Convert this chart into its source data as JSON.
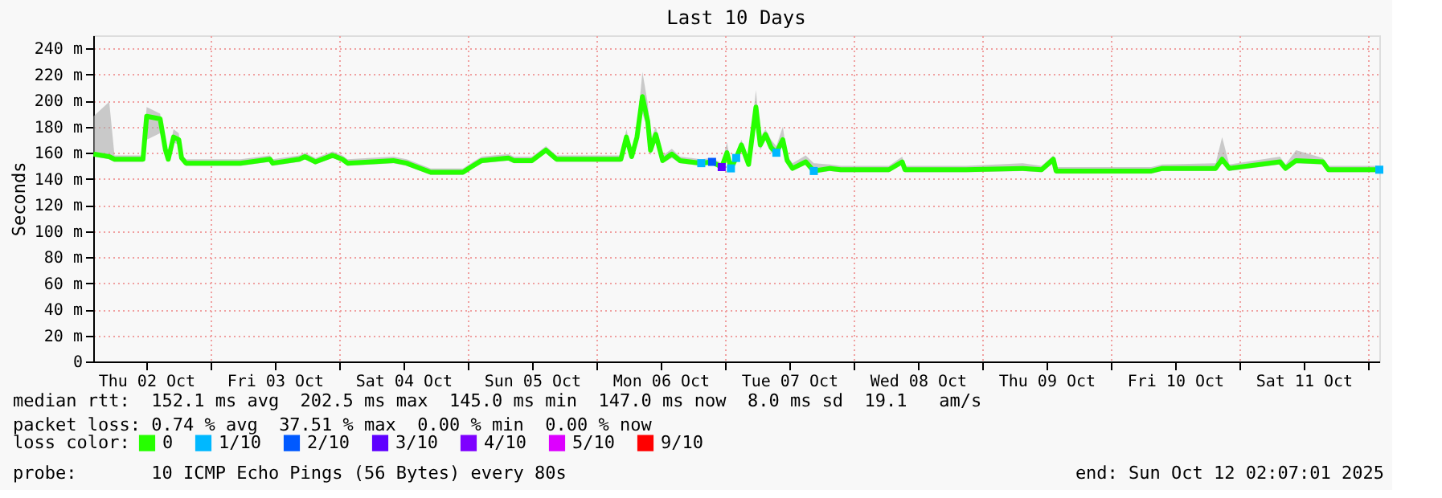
{
  "chart_data": {
    "type": "line",
    "title": "Last 10 Days",
    "ylabel": "Seconds",
    "legend_title": "loss color:",
    "legend": "bottom",
    "grid": true,
    "marker": "none",
    "line_style": "solid",
    "xlim": [
      "2025-10-02T02:07",
      "2025-10-12T02:07"
    ],
    "xticks": [
      {
        "value": "2025-10-02T12:00",
        "label": "Thu 02 Oct"
      },
      {
        "value": "2025-10-03T00:00",
        "label": null
      },
      {
        "value": "2025-10-03T12:00",
        "label": "Fri 03 Oct"
      },
      {
        "value": "2025-10-04T00:00",
        "label": null
      },
      {
        "value": "2025-10-04T12:00",
        "label": "Sat 04 Oct"
      },
      {
        "value": "2025-10-05T00:00",
        "label": null
      },
      {
        "value": "2025-10-05T12:00",
        "label": "Sun 05 Oct"
      },
      {
        "value": "2025-10-06T00:00",
        "label": null
      },
      {
        "value": "2025-10-06T12:00",
        "label": "Mon 06 Oct"
      },
      {
        "value": "2025-10-07T00:00",
        "label": null
      },
      {
        "value": "2025-10-07T12:00",
        "label": "Tue 07 Oct"
      },
      {
        "value": "2025-10-08T00:00",
        "label": null
      },
      {
        "value": "2025-10-08T12:00",
        "label": "Wed 08 Oct"
      },
      {
        "value": "2025-10-09T00:00",
        "label": null
      },
      {
        "value": "2025-10-09T12:00",
        "label": "Thu 09 Oct"
      },
      {
        "value": "2025-10-10T00:00",
        "label": null
      },
      {
        "value": "2025-10-10T12:00",
        "label": "Fri 10 Oct"
      },
      {
        "value": "2025-10-11T00:00",
        "label": null
      },
      {
        "value": "2025-10-11T12:00",
        "label": "Sat 11 Oct"
      },
      {
        "value": "2025-10-12T00:00",
        "label": null
      }
    ],
    "ylim": [
      0,
      250
    ],
    "yticks": [
      0,
      {
        "value": 20,
        "label": "20 m"
      },
      {
        "value": 40,
        "label": "40 m"
      },
      {
        "value": 60,
        "label": "60 m"
      },
      {
        "value": 80,
        "label": "80 m"
      },
      {
        "value": 100,
        "label": "100 m"
      },
      {
        "value": 120,
        "label": "120 m"
      },
      {
        "value": 140,
        "label": "140 m"
      },
      {
        "value": 160,
        "label": "160 m"
      },
      {
        "value": 180,
        "label": "180 m"
      },
      {
        "value": 200,
        "label": "200 m"
      },
      {
        "value": 220,
        "label": "220 m"
      },
      {
        "value": 240,
        "label": "240 m"
      }
    ],
    "series": [
      {
        "name": "0",
        "color": "#26ff00",
        "type": "line",
        "x": [
          "2025-10-02T02:10",
          "2025-10-02T05:06",
          "2025-10-02T06:05",
          "2025-10-02T11:24",
          "2025-10-02T12:05",
          "2025-10-02T14:36",
          "2025-10-02T15:36",
          "2025-10-02T16:07",
          "2025-10-02T17:06",
          "2025-10-02T18:05",
          "2025-10-02T18:36",
          "2025-10-02T19:25",
          "2025-10-03T05:36",
          "2025-10-03T11:06",
          "2025-10-03T11:37",
          "2025-10-03T16:35",
          "2025-10-03T17:37",
          "2025-10-03T19:35",
          "2025-10-03T22:48",
          "2025-10-04T00:36",
          "2025-10-04T01:35",
          "2025-10-04T10:07",
          "2025-10-04T12:36",
          "2025-10-04T17:06",
          "2025-10-04T23:06",
          "2025-10-05T00:36",
          "2025-10-05T02:36",
          "2025-10-05T07:35",
          "2025-10-05T08:37",
          "2025-10-05T12:00",
          "2025-10-05T14:36",
          "2025-10-05T16:35",
          "2025-10-06T04:35",
          "2025-10-06T05:37",
          "2025-10-06T06:36",
          "2025-10-06T07:35",
          "2025-10-06T08:36",
          "2025-10-06T09:36",
          "2025-10-06T10:07",
          "2025-10-06T11:06",
          "2025-10-06T12:23",
          "2025-10-06T14:06",
          "2025-10-06T15:36",
          "2025-10-06T19:35",
          "2025-10-06T21:36",
          "2025-10-06T23:24",
          "2025-10-07T00:23",
          "2025-10-07T01:07",
          "2025-10-07T02:06",
          "2025-10-07T03:05",
          "2025-10-07T04:25",
          "2025-10-07T05:47",
          "2025-10-07T06:36",
          "2025-10-07T07:35",
          "2025-10-07T08:37",
          "2025-10-07T09:36",
          "2025-10-07T10:48",
          "2025-10-07T11:37",
          "2025-10-07T12:36",
          "2025-10-07T15:05",
          "2025-10-07T16:35",
          "2025-10-07T19:35",
          "2025-10-07T21:36",
          "2025-10-08T06:36",
          "2025-10-08T09:05",
          "2025-10-08T09:36",
          "2025-10-08T21:00",
          "2025-10-09T07:35",
          "2025-10-09T11:06",
          "2025-10-09T13:17",
          "2025-10-09T13:48",
          "2025-10-10T07:35",
          "2025-10-10T09:36",
          "2025-10-10T19:35",
          "2025-10-10T20:47",
          "2025-10-10T22:07",
          "2025-10-11T07:35",
          "2025-10-11T08:37",
          "2025-10-11T10:35",
          "2025-10-11T15:35",
          "2025-10-11T16:37",
          "2025-10-12T02:07"
        ],
        "values": [
          159,
          157,
          155,
          155,
          188,
          186,
          162,
          155,
          172,
          170,
          156,
          152,
          152,
          155,
          152,
          155,
          157,
          153,
          158,
          155,
          152,
          154,
          152,
          145,
          145,
          149,
          154,
          156,
          154,
          154,
          162,
          155,
          155,
          172,
          157,
          172,
          203,
          184,
          162,
          174,
          154,
          159,
          154,
          152,
          153,
          149,
          160,
          148,
          156,
          166,
          151,
          195,
          166,
          174,
          164,
          160,
          170,
          154,
          148,
          153,
          146,
          148,
          147,
          147,
          153,
          147,
          147,
          148,
          147,
          155,
          146,
          146,
          148,
          148,
          155,
          148,
          153,
          148,
          154,
          153,
          147,
          147
        ],
        "lower": [
          157,
          155,
          153,
          153,
          170,
          175,
          160,
          153,
          168,
          166,
          154,
          150,
          150,
          153,
          150,
          153,
          155,
          151,
          156,
          153,
          150,
          152,
          150,
          143,
          143,
          147,
          152,
          154,
          152,
          152,
          160,
          153,
          153,
          168,
          155,
          168,
          190,
          178,
          158,
          170,
          152,
          156,
          152,
          150,
          151,
          147,
          156,
          146,
          153,
          162,
          149,
          185,
          162,
          170,
          160,
          157,
          166,
          152,
          146,
          151,
          144,
          146,
          145,
          145,
          151,
          145,
          145,
          146,
          145,
          152,
          144,
          144,
          146,
          146,
          152,
          146,
          151,
          146,
          152,
          151,
          145,
          145
        ],
        "upper": [
          188,
          199,
          158,
          158,
          195,
          190,
          168,
          158,
          178,
          175,
          159,
          155,
          155,
          158,
          155,
          158,
          160,
          156,
          161,
          158,
          155,
          157,
          155,
          148,
          148,
          152,
          157,
          159,
          157,
          157,
          165,
          158,
          158,
          178,
          160,
          178,
          222,
          198,
          170,
          180,
          158,
          163,
          157,
          155,
          156,
          152,
          168,
          151,
          160,
          170,
          155,
          208,
          172,
          178,
          170,
          165,
          180,
          158,
          152,
          158,
          152,
          151,
          150,
          150,
          157,
          150,
          150,
          152,
          150,
          158,
          149,
          149,
          151,
          152,
          172,
          151,
          157,
          151,
          162,
          156,
          150,
          150
        ]
      },
      {
        "name": "1/10",
        "color": "#00b8ff",
        "type": "scatter",
        "marker": "square",
        "x": [
          "2025-10-06T19:35",
          "2025-10-07T01:07",
          "2025-10-07T02:06",
          "2025-10-07T09:36",
          "2025-10-07T16:35",
          "2025-10-12T02:07"
        ],
        "values": [
          152,
          148,
          156,
          160,
          146,
          147
        ]
      },
      {
        "name": "2/10",
        "color": "#0059ff",
        "type": "scatter",
        "marker": "square",
        "x": [
          "2025-10-06T21:36"
        ],
        "values": [
          153
        ]
      },
      {
        "name": "3/10",
        "color": "#5e00ff",
        "type": "scatter",
        "marker": "square",
        "x": [
          "2025-10-06T23:24"
        ],
        "values": [
          149
        ]
      },
      {
        "name": "4/10",
        "color": "#7e00ff",
        "type": "scatter",
        "marker": "square"
      },
      {
        "name": "5/10",
        "color": "#dd00ff",
        "type": "scatter",
        "marker": "square"
      },
      {
        "name": "9/10",
        "color": "#ff0000",
        "type": "scatter",
        "marker": "square"
      }
    ],
    "annotations": [
      "median rtt:  152.1 ms avg  202.5 ms max  145.0 ms min  147.0 ms now  8.0 ms sd  19.1   am/s",
      "packet loss: 0.74 % avg  37.51 % max  0.00 % min  0.00 % now",
      "probe:       10 ICMP Echo Pings (56 Bytes) every 80s",
      "end: Sun Oct 12 02:07:01 2025"
    ]
  }
}
